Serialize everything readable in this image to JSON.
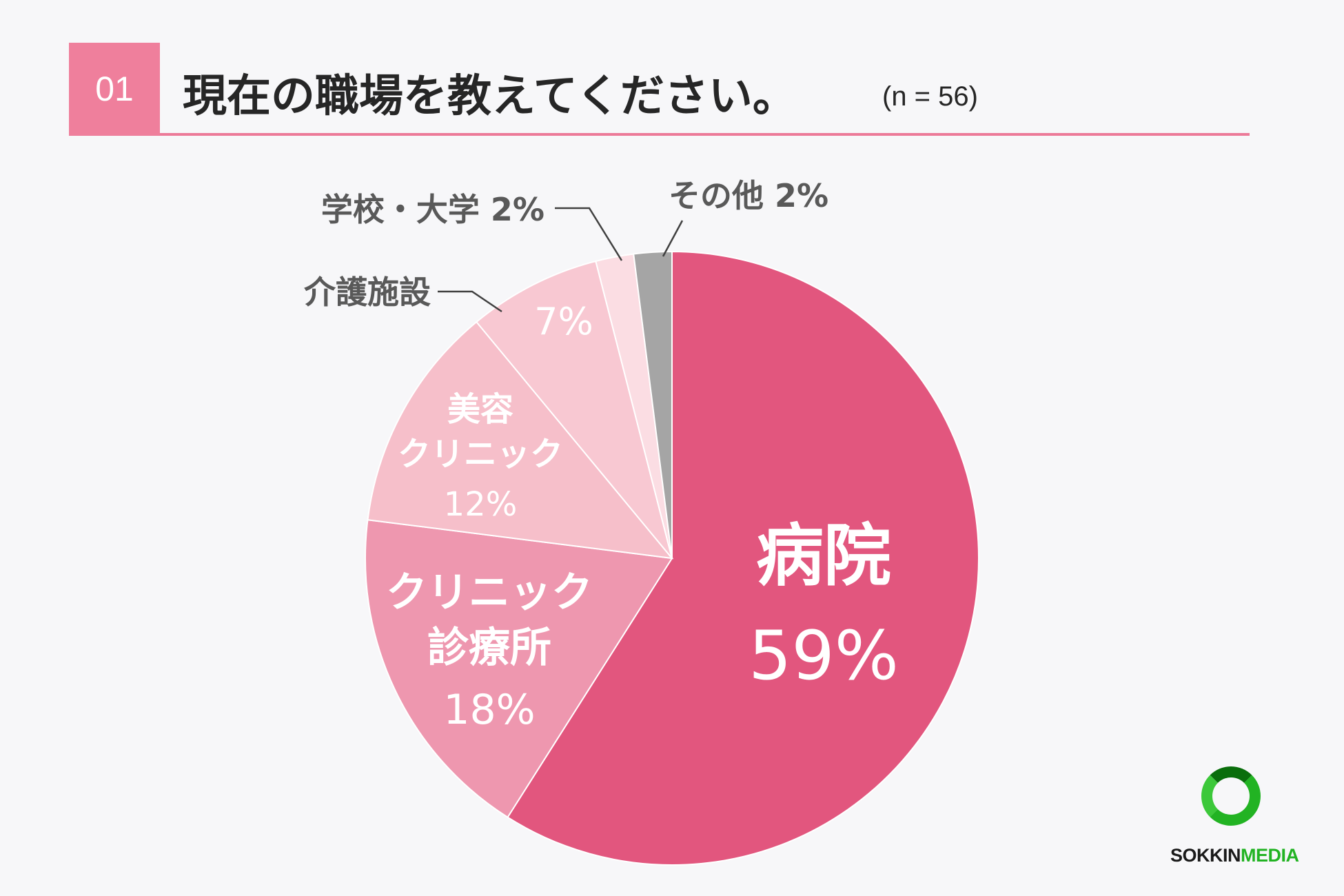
{
  "header": {
    "number": "01",
    "question": "現在の職場を教えてください。",
    "sample": "(n = 56)"
  },
  "colors": {
    "accent": "#ec7a98",
    "slice_hospital": "#e2567e",
    "slice_clinic": "#ee97af",
    "slice_beauty": "#f6bfca",
    "slice_care": "#f8c8d2",
    "slice_school": "#fbdde3",
    "slice_other": "#a5a5a5"
  },
  "chart_data": {
    "type": "pie",
    "start": "12 o'clock",
    "direction": "clockwise",
    "slices": [
      {
        "label": "病院",
        "value": 59,
        "display": "59%",
        "color": "#e2567e",
        "label_position": "inside"
      },
      {
        "label": "クリニック\n診療所",
        "value": 18,
        "display": "18%",
        "color": "#ee97af",
        "label_position": "inside"
      },
      {
        "label": "美容\nクリニック",
        "value": 12,
        "display": "12%",
        "color": "#f6bfca",
        "label_position": "inside"
      },
      {
        "label": "介護施設",
        "value": 7,
        "display": "7%",
        "color": "#f8c8d2",
        "label_position": "outside-callout"
      },
      {
        "label": "学校・大学",
        "value": 2,
        "display": "2%",
        "color": "#fbdde3",
        "label_position": "outside-callout"
      },
      {
        "label": "その他",
        "value": 2,
        "display": "2%",
        "color": "#a5a5a5",
        "label_position": "outside-callout"
      }
    ]
  },
  "logo": {
    "part1": "SOKKIN",
    "part2": "MEDIA"
  }
}
